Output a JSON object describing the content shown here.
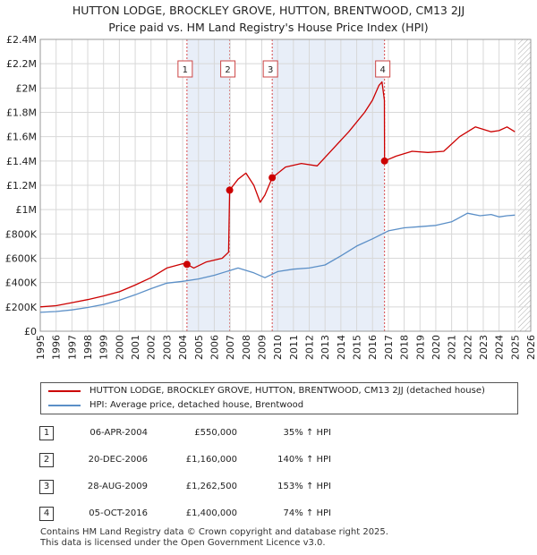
{
  "title_line1": "HUTTON LODGE, BROCKLEY GROVE, HUTTON, BRENTWOOD, CM13 2JJ",
  "title_line2": "Price paid vs. HM Land Registry's House Price Index (HPI)",
  "colors": {
    "property": "#cc0000",
    "hpi": "#5b8fc7",
    "marker": "#cc0000",
    "band": "#e8eef8",
    "grid": "#d8d8d8"
  },
  "chart_data": {
    "type": "line",
    "title": "HUTTON LODGE, BROCKLEY GROVE, HUTTON, BRENTWOOD, CM13 2JJ — Price paid vs. HM Land Registry's House Price Index (HPI)",
    "xlabel": "",
    "ylabel": "",
    "xlim": [
      1995,
      2026
    ],
    "ylim": [
      0,
      2400000
    ],
    "x_ticks": [
      "1995",
      "1996",
      "1997",
      "1998",
      "1999",
      "2000",
      "2001",
      "2002",
      "2003",
      "2004",
      "2005",
      "2006",
      "2007",
      "2008",
      "2009",
      "2010",
      "2011",
      "2012",
      "2013",
      "2014",
      "2015",
      "2016",
      "2017",
      "2018",
      "2019",
      "2020",
      "2021",
      "2022",
      "2023",
      "2024",
      "2025",
      "2026"
    ],
    "y_ticks": [
      {
        "value": 0,
        "label": "£0"
      },
      {
        "value": 200000,
        "label": "£200K"
      },
      {
        "value": 400000,
        "label": "£400K"
      },
      {
        "value": 600000,
        "label": "£600K"
      },
      {
        "value": 800000,
        "label": "£800K"
      },
      {
        "value": 1000000,
        "label": "£1M"
      },
      {
        "value": 1200000,
        "label": "£1.2M"
      },
      {
        "value": 1400000,
        "label": "£1.4M"
      },
      {
        "value": 1600000,
        "label": "£1.6M"
      },
      {
        "value": 1800000,
        "label": "£1.8M"
      },
      {
        "value": 2000000,
        "label": "£2M"
      },
      {
        "value": 2200000,
        "label": "£2.2M"
      },
      {
        "value": 2400000,
        "label": "£2.4M"
      }
    ],
    "grid": true,
    "shaded_ranges": [
      [
        2004.27,
        2006.97
      ],
      [
        2009.66,
        2016.76
      ]
    ],
    "hatched_range": [
      2025.2,
      2026
    ],
    "series": [
      {
        "name": "HUTTON LODGE, BROCKLEY GROVE, HUTTON, BRENTWOOD, CM13 2JJ (detached house)",
        "color": "#cc0000",
        "x": [
          1995.0,
          1996.0,
          1997.0,
          1998.0,
          1999.0,
          2000.0,
          2001.0,
          2002.0,
          2003.0,
          2004.0,
          2004.27,
          2004.7,
          2005.5,
          2006.5,
          2006.9,
          2006.97,
          2007.5,
          2008.0,
          2008.5,
          2008.9,
          2009.2,
          2009.66,
          2010.5,
          2011.5,
          2012.5,
          2013.5,
          2014.5,
          2015.5,
          2016.0,
          2016.4,
          2016.6,
          2016.75,
          2016.76,
          2017.5,
          2018.5,
          2019.5,
          2020.5,
          2021.5,
          2022.5,
          2023.0,
          2023.5,
          2024.0,
          2024.5,
          2025.0
        ],
        "values": [
          200000,
          210000,
          235000,
          260000,
          290000,
          325000,
          380000,
          440000,
          520000,
          555000,
          550000,
          520000,
          570000,
          600000,
          650000,
          1160000,
          1250000,
          1300000,
          1200000,
          1060000,
          1120000,
          1262500,
          1350000,
          1380000,
          1360000,
          1500000,
          1640000,
          1800000,
          1900000,
          2020000,
          2050000,
          1900000,
          1400000,
          1440000,
          1480000,
          1470000,
          1480000,
          1600000,
          1680000,
          1660000,
          1640000,
          1650000,
          1680000,
          1640000
        ]
      },
      {
        "name": "HPI: Average price, detached house, Brentwood",
        "color": "#5b8fc7",
        "x": [
          1995.0,
          1996.0,
          1997.0,
          1998.0,
          1999.0,
          2000.0,
          2001.0,
          2002.0,
          2003.0,
          2004.0,
          2005.0,
          2006.0,
          2007.0,
          2007.5,
          2008.5,
          2009.2,
          2010.0,
          2011.0,
          2012.0,
          2013.0,
          2014.0,
          2015.0,
          2016.0,
          2017.0,
          2018.0,
          2019.0,
          2020.0,
          2021.0,
          2022.0,
          2022.8,
          2023.5,
          2024.0,
          2024.5,
          2025.0
        ],
        "values": [
          155000,
          162000,
          175000,
          195000,
          220000,
          255000,
          300000,
          350000,
          395000,
          410000,
          430000,
          460000,
          500000,
          520000,
          480000,
          440000,
          490000,
          510000,
          520000,
          545000,
          620000,
          700000,
          760000,
          825000,
          850000,
          860000,
          870000,
          900000,
          970000,
          950000,
          960000,
          940000,
          950000,
          955000
        ]
      }
    ],
    "sale_markers": [
      {
        "id": "1",
        "x": 2004.27,
        "value": 550000
      },
      {
        "id": "2",
        "x": 2006.97,
        "value": 1160000
      },
      {
        "id": "3",
        "x": 2009.66,
        "value": 1262500
      },
      {
        "id": "4",
        "x": 2016.76,
        "value": 1400000
      }
    ]
  },
  "legend": [
    {
      "label": "HUTTON LODGE, BROCKLEY GROVE, HUTTON, BRENTWOOD, CM13 2JJ (detached house)"
    },
    {
      "label": "HPI: Average price, detached house, Brentwood"
    }
  ],
  "sales": [
    {
      "num": "1",
      "date": "06-APR-2004",
      "price": "£550,000",
      "hpi": "35% ↑ HPI"
    },
    {
      "num": "2",
      "date": "20-DEC-2006",
      "price": "£1,160,000",
      "hpi": "140% ↑ HPI"
    },
    {
      "num": "3",
      "date": "28-AUG-2009",
      "price": "£1,262,500",
      "hpi": "153% ↑ HPI"
    },
    {
      "num": "4",
      "date": "05-OCT-2016",
      "price": "£1,400,000",
      "hpi": "74% ↑ HPI"
    }
  ],
  "footer_line1": "Contains HM Land Registry data © Crown copyright and database right 2025.",
  "footer_line2": "This data is licensed under the Open Government Licence v3.0."
}
